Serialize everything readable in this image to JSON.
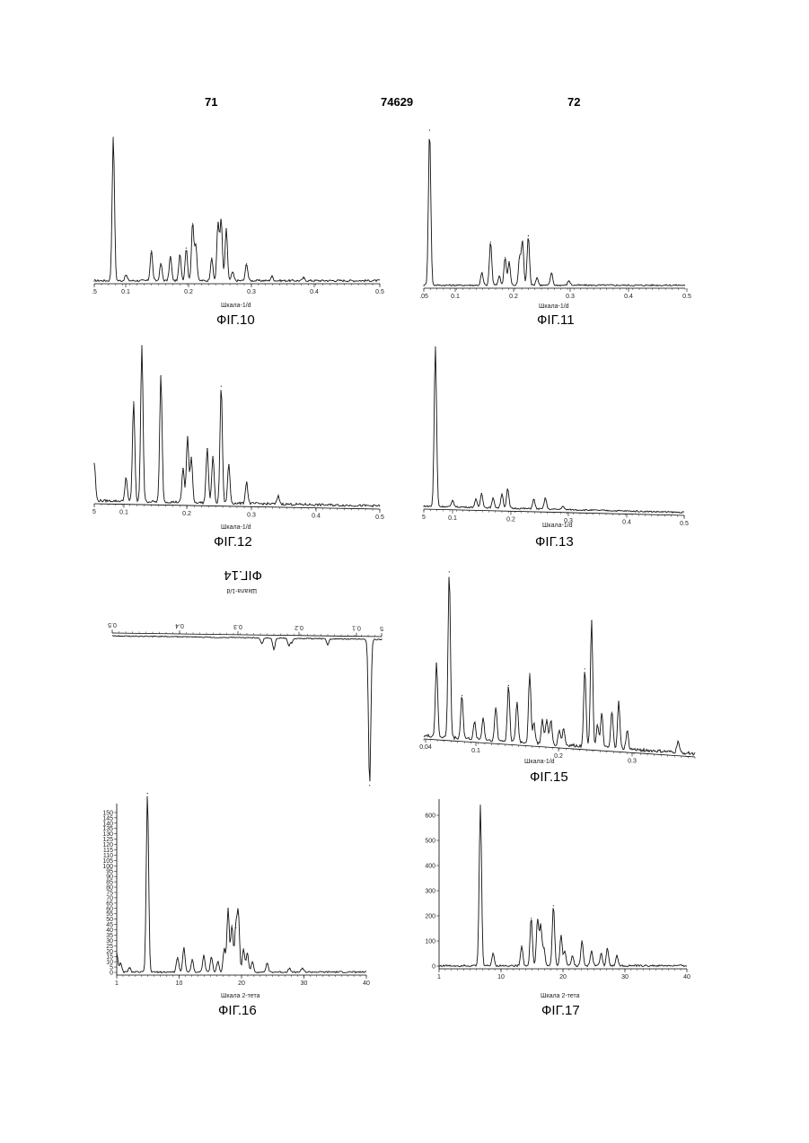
{
  "header": {
    "left": "71",
    "center": "74629",
    "right": "72"
  },
  "chart_data": [
    {
      "type": "line",
      "caption": "ФІГ.10",
      "xlabel": "Шкала-1/d",
      "ticks": [
        ".5",
        "0.1",
        "0.2",
        "0.3",
        "0.4",
        "0.5"
      ],
      "x": [
        0.05,
        0.08,
        0.1,
        0.14,
        0.155,
        0.17,
        0.185,
        0.195,
        0.205,
        0.21,
        0.235,
        0.245,
        0.25,
        0.258,
        0.268,
        0.29,
        0.33,
        0.38
      ],
      "values": [
        0,
        100,
        4,
        21,
        12,
        17,
        18,
        23,
        40,
        25,
        16,
        40,
        42,
        36,
        6,
        12,
        3,
        2
      ],
      "xlim": [
        0.05,
        0.5
      ]
    },
    {
      "type": "line",
      "caption": "ФІГ.11",
      "xlabel": "Шкала-1/d",
      "ticks": [
        ".05",
        "0.1",
        "0.2",
        "0.3",
        "0.4",
        "0.5"
      ],
      "x": [
        0.05,
        0.06,
        0.15,
        0.165,
        0.18,
        0.19,
        0.197,
        0.215,
        0.22,
        0.23,
        0.245,
        0.27,
        0.3
      ],
      "values": [
        0,
        100,
        8,
        28,
        6,
        18,
        15,
        18,
        28,
        32,
        5,
        8,
        3
      ],
      "xlim": [
        0.05,
        0.5
      ]
    },
    {
      "type": "line",
      "caption": "ФІГ.12",
      "xlabel": "Шкала-1/d",
      "ticks": [
        "5",
        "0.1",
        "0.2",
        "0.3",
        "0.4",
        "0.5"
      ],
      "x": [
        0.05,
        0.1,
        0.112,
        0.125,
        0.155,
        0.19,
        0.197,
        0.203,
        0.228,
        0.237,
        0.25,
        0.262,
        0.29,
        0.34
      ],
      "values": [
        24,
        15,
        64,
        100,
        81,
        22,
        42,
        29,
        35,
        30,
        75,
        25,
        14,
        5
      ],
      "xlim": [
        0.05,
        0.5
      ]
    },
    {
      "type": "line",
      "caption": "ФІГ.13",
      "xlabel": "Шкала-1/d",
      "ticks": [
        "5",
        "0.1",
        "0.2",
        "0.3",
        "0.4",
        "0.5"
      ],
      "x": [
        0.05,
        0.07,
        0.1,
        0.14,
        0.15,
        0.17,
        0.185,
        0.195,
        0.24,
        0.26,
        0.29
      ],
      "values": [
        0,
        100,
        4,
        5,
        9,
        6,
        9,
        12,
        6,
        7,
        2
      ],
      "xlim": [
        0.05,
        0.5
      ]
    },
    {
      "type": "line",
      "caption": "ФІГ.14",
      "xlabel": "Шкала-1/d",
      "ticks": [
        "5",
        "0.1",
        "0.2",
        "0.3",
        "0.4",
        "0.5"
      ],
      "x": [
        0.05,
        0.07,
        0.14,
        0.2,
        0.205,
        0.23,
        0.25
      ],
      "values": [
        0,
        100,
        4,
        3,
        5,
        8,
        4
      ],
      "xlim": [
        0.05,
        0.5
      ]
    },
    {
      "type": "line",
      "caption": "ФІГ.15",
      "xlabel": "Шкала-1/d",
      "ticks": [
        "0.04",
        "0.1",
        "0.2",
        "0.3"
      ],
      "x": [
        0.045,
        0.055,
        0.07,
        0.085,
        0.1,
        0.11,
        0.125,
        0.14,
        0.15,
        0.165,
        0.17,
        0.18,
        0.185,
        0.19,
        0.2,
        0.205,
        0.23,
        0.238,
        0.245,
        0.25,
        0.262,
        0.27,
        0.28,
        0.34
      ],
      "values": [
        0,
        44,
        100,
        26,
        10,
        13,
        20,
        34,
        24,
        42,
        12,
        14,
        15,
        14,
        9,
        10,
        47,
        76,
        14,
        20,
        22,
        28,
        11,
        7
      ],
      "xlim": [
        0.04,
        0.36
      ]
    },
    {
      "type": "line",
      "caption": "ФІГ.16",
      "xlabel": "Шкала 2-тета",
      "ticks": [
        "1",
        "10",
        "20",
        "30",
        "40"
      ],
      "yticks": [
        0,
        5,
        10,
        15,
        20,
        25,
        30,
        35,
        40,
        45,
        50,
        55,
        60,
        65,
        70,
        75,
        80,
        85,
        90,
        95,
        100,
        105,
        110,
        115,
        120,
        125,
        130,
        135,
        140,
        145,
        150
      ],
      "x": [
        1,
        1.6,
        3,
        5.8,
        10.5,
        11.5,
        12.8,
        14.6,
        15.8,
        16.8,
        17.8,
        18.4,
        19,
        19.6,
        20,
        20.8,
        21.4,
        22.2,
        24.5,
        28,
        30
      ],
      "values": [
        18,
        8,
        4,
        168,
        14,
        23,
        12,
        16,
        14,
        10,
        22,
        60,
        44,
        42,
        55,
        22,
        18,
        10,
        8,
        4,
        4
      ],
      "ylim": [
        0,
        155
      ],
      "xlim": [
        1,
        40
      ]
    },
    {
      "type": "line",
      "caption": "ФІГ.17",
      "xlabel": "Шкала 2-тета",
      "ticks": [
        "1",
        "10",
        "20",
        "30",
        "40"
      ],
      "yticks": [
        0,
        100,
        200,
        300,
        400,
        500,
        600
      ],
      "x": [
        1,
        5,
        7.5,
        9.5,
        14,
        15.5,
        16.5,
        17,
        17.5,
        19,
        20.2,
        20.8,
        22,
        23.5,
        25,
        26.5,
        27.5,
        29
      ],
      "values": [
        0,
        3,
        640,
        50,
        80,
        190,
        185,
        160,
        70,
        240,
        120,
        60,
        40,
        100,
        60,
        50,
        70,
        40
      ],
      "ylim": [
        0,
        650
      ],
      "xlim": [
        1,
        40
      ]
    }
  ]
}
